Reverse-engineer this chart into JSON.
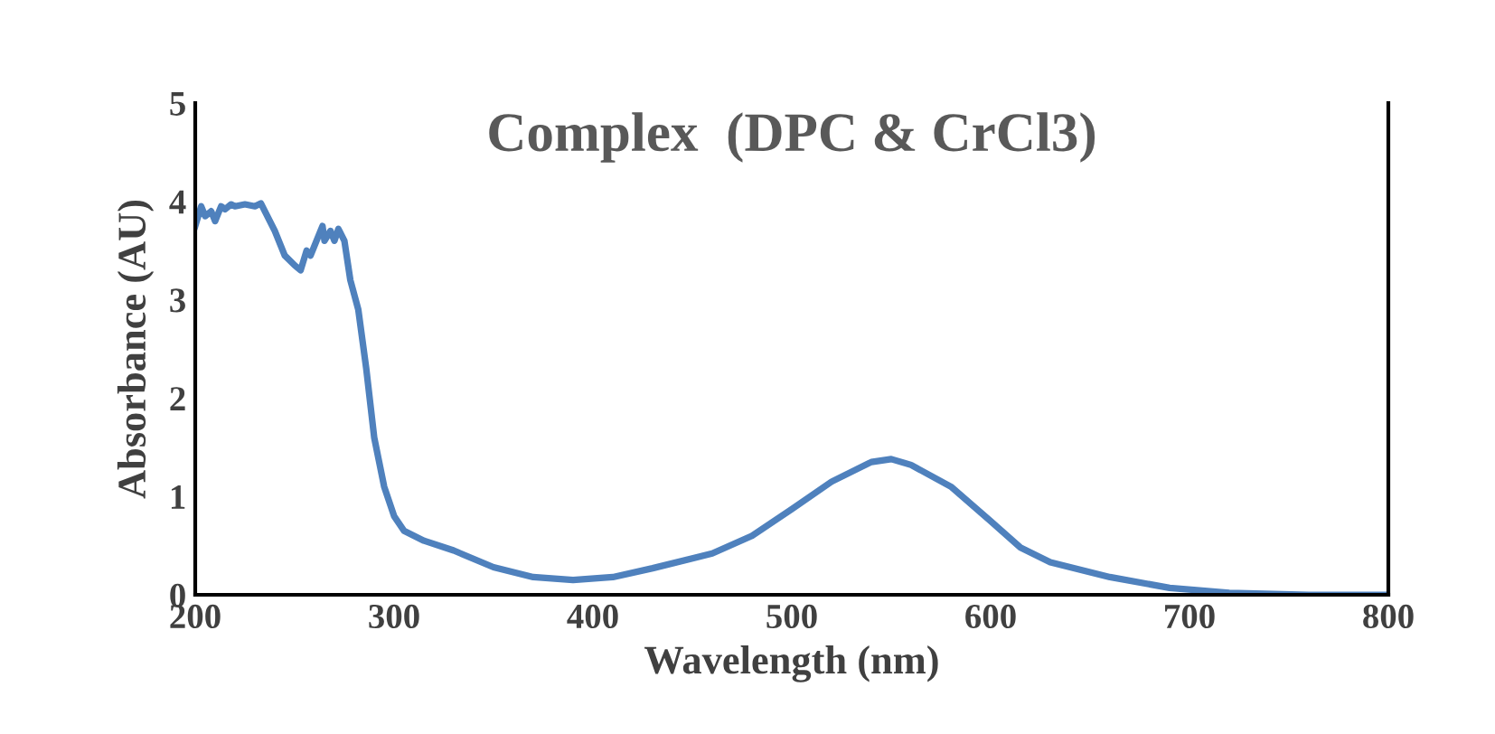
{
  "chart_data": {
    "type": "line",
    "title": "Complex  (DPC & CrCl3)",
    "xlabel": "Wavelength (nm)",
    "ylabel": "Absorbance (AU)",
    "xlim": [
      200,
      800
    ],
    "xticks": [
      200,
      300,
      400,
      500,
      600,
      700,
      800
    ],
    "ylim": [
      0,
      5
    ],
    "yticks": [
      0,
      1,
      2,
      3,
      4,
      5
    ],
    "grid": false,
    "legend": false,
    "marker": "none",
    "line_style": "solid",
    "series": [
      {
        "color": "#4f81bd",
        "x": [
          200,
          203,
          205,
          208,
          210,
          213,
          215,
          218,
          220,
          225,
          230,
          233,
          235,
          240,
          245,
          250,
          253,
          256,
          258,
          262,
          264,
          265,
          268,
          270,
          272,
          275,
          278,
          282,
          286,
          290,
          295,
          300,
          305,
          315,
          330,
          350,
          370,
          390,
          410,
          430,
          460,
          480,
          500,
          520,
          540,
          550,
          560,
          580,
          600,
          615,
          630,
          660,
          690,
          720,
          760,
          800
        ],
        "values": [
          3.75,
          3.95,
          3.85,
          3.9,
          3.8,
          3.95,
          3.92,
          3.97,
          3.95,
          3.97,
          3.95,
          3.98,
          3.9,
          3.7,
          3.45,
          3.35,
          3.3,
          3.5,
          3.45,
          3.65,
          3.75,
          3.6,
          3.7,
          3.6,
          3.72,
          3.6,
          3.2,
          2.9,
          2.3,
          1.6,
          1.1,
          0.8,
          0.65,
          0.55,
          0.45,
          0.28,
          0.18,
          0.15,
          0.18,
          0.27,
          0.42,
          0.6,
          0.87,
          1.15,
          1.35,
          1.38,
          1.32,
          1.1,
          0.75,
          0.48,
          0.33,
          0.18,
          0.07,
          0.02,
          0.0,
          0.0
        ]
      }
    ]
  }
}
